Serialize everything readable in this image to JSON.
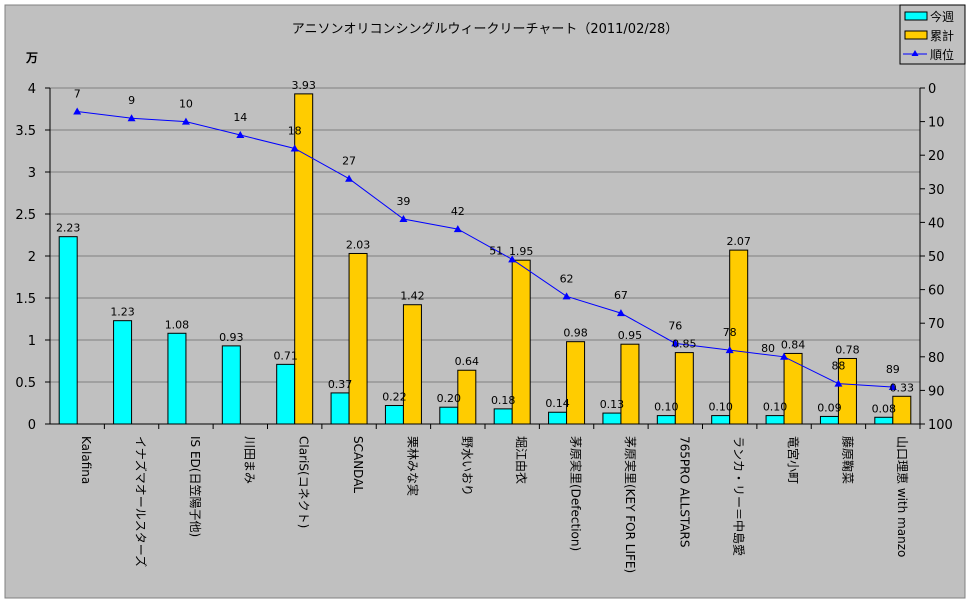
{
  "chart_data": {
    "type": "bar",
    "title": "アニソンオリコンシングルウィークリーチャート（2011/02/28）",
    "y_unit_label": "万",
    "ylim": [
      0,
      4
    ],
    "yticks": [
      "0",
      "0.5",
      "1",
      "1.5",
      "2",
      "2.5",
      "3",
      "3.5",
      "4"
    ],
    "y2lim": [
      100,
      0
    ],
    "y2ticks": [
      "0",
      "10",
      "20",
      "30",
      "40",
      "50",
      "60",
      "70",
      "80",
      "90",
      "100"
    ],
    "grid": true,
    "legend_placement": "top-right",
    "categories": [
      "Kalafina",
      "イナズマオールスターズ",
      "IS ED(日笠陽子他)",
      "川田まみ",
      "ClariS(コネクト)",
      "SCANDAL",
      "栗林みな実",
      "野水いおり",
      "堀江由衣",
      "茅原実里(Defection)",
      "茅原実里(KEY FOR LIFE)",
      "765PRO ALLSTARS",
      "ランカ・リー＝中島愛",
      "竜宮小町",
      "藤原鞠菜",
      "山口理恵 with manzo"
    ],
    "series": [
      {
        "name": "今週",
        "type": "bar",
        "color": "#00ffff",
        "values": [
          2.23,
          1.23,
          1.08,
          0.93,
          0.71,
          0.37,
          0.22,
          0.2,
          0.18,
          0.14,
          0.13,
          0.1,
          0.1,
          0.1,
          0.09,
          0.08
        ],
        "labels": [
          "2.23",
          "1.23",
          "1.08",
          "0.93",
          "0.71",
          "0.37",
          "0.22",
          "0.20",
          "0.18",
          "0.14",
          "0.13",
          "0.10",
          "0.10",
          "0.10",
          "0.09",
          "0.08"
        ]
      },
      {
        "name": "累計",
        "type": "bar",
        "color": "#ffcc00",
        "values": [
          null,
          null,
          null,
          null,
          3.93,
          2.03,
          1.42,
          0.64,
          1.95,
          0.98,
          0.95,
          0.85,
          2.07,
          0.84,
          0.78,
          0.33
        ],
        "labels": [
          "",
          "",
          "",
          "",
          "3.93",
          "2.03",
          "1.42",
          "0.64",
          "1.95",
          "0.98",
          "0.95",
          "0.85",
          "2.07",
          "0.84",
          "0.78",
          "0.33"
        ]
      },
      {
        "name": "順位",
        "type": "line",
        "axis": "secondary",
        "color": "#0000ff",
        "values": [
          7,
          9,
          10,
          14,
          18,
          27,
          39,
          42,
          51,
          62,
          67,
          76,
          78,
          80,
          88,
          89
        ],
        "labels": [
          "7",
          "9",
          "10",
          "14",
          "18",
          "27",
          "39",
          "42",
          "51",
          "62",
          "67",
          "76",
          "78",
          "80",
          "88",
          "89"
        ]
      }
    ]
  }
}
